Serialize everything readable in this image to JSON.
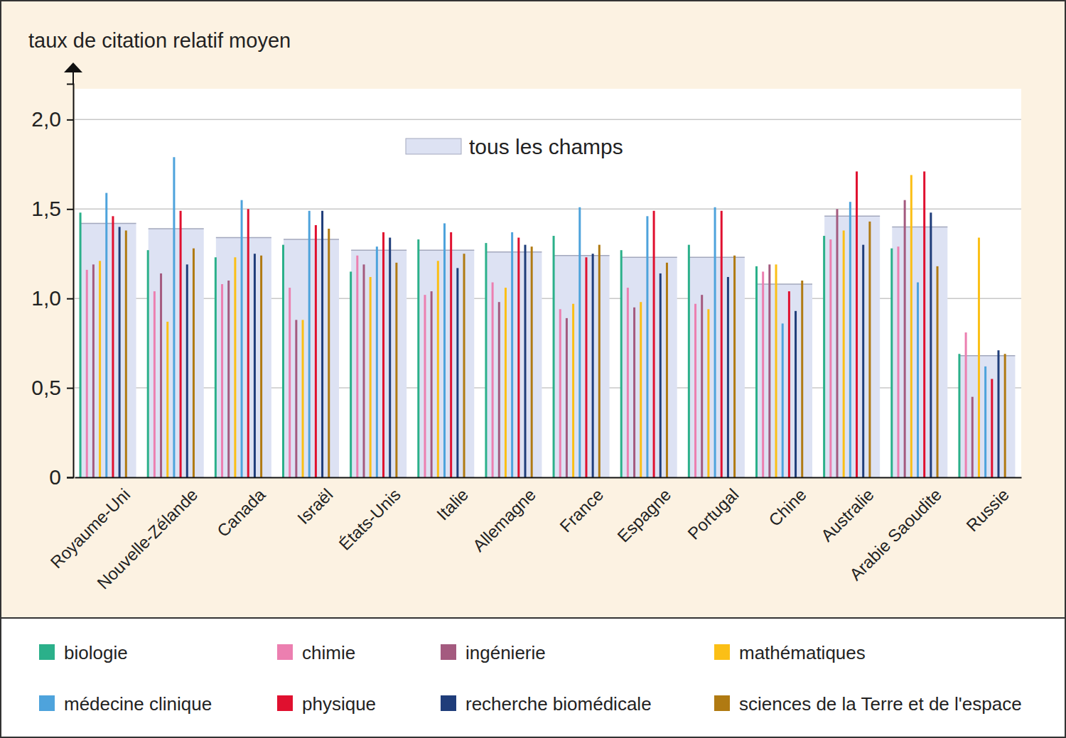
{
  "chart_data": {
    "type": "bar",
    "y_label": "taux de citation relatif moyen",
    "categories": [
      "Royaume-Uni",
      "Nouvelle-Zélande",
      "Canada",
      "Israël",
      "États-Unis",
      "Italie",
      "Allemagne",
      "France",
      "Espagne",
      "Portugal",
      "Chine",
      "Australie",
      "Arabie Saoudite",
      "Russie"
    ],
    "series": [
      {
        "name": "tous les champs",
        "color": "#dde2f3",
        "values": [
          1.42,
          1.39,
          1.34,
          1.33,
          1.27,
          1.27,
          1.26,
          1.24,
          1.23,
          1.23,
          1.08,
          1.46,
          1.4,
          0.68
        ]
      },
      {
        "name": "biologie",
        "color": "#2bb08a",
        "values": [
          1.48,
          1.27,
          1.23,
          1.3,
          1.15,
          1.33,
          1.31,
          1.35,
          1.27,
          1.3,
          1.18,
          1.35,
          1.28,
          0.69
        ]
      },
      {
        "name": "chimie",
        "color": "#ec7fb0",
        "values": [
          1.16,
          1.04,
          1.08,
          1.06,
          1.24,
          1.02,
          1.09,
          0.94,
          1.06,
          0.97,
          1.15,
          1.33,
          1.29,
          0.81
        ]
      },
      {
        "name": "ingénierie",
        "color": "#a45a7f",
        "values": [
          1.19,
          1.14,
          1.1,
          0.88,
          1.19,
          1.04,
          0.98,
          0.89,
          0.95,
          1.02,
          1.19,
          1.5,
          1.55,
          0.45
        ]
      },
      {
        "name": "mathématiques",
        "color": "#fbbf16",
        "values": [
          1.21,
          0.87,
          1.23,
          0.88,
          1.12,
          1.21,
          1.06,
          0.97,
          0.98,
          0.94,
          1.19,
          1.38,
          1.69,
          1.34
        ]
      },
      {
        "name": "médecine clinique",
        "color": "#4ea3dc",
        "values": [
          1.59,
          1.79,
          1.55,
          1.49,
          1.29,
          1.42,
          1.37,
          1.51,
          1.46,
          1.51,
          0.86,
          1.54,
          1.09,
          0.62
        ]
      },
      {
        "name": "physique",
        "color": "#e0102f",
        "values": [
          1.46,
          1.49,
          1.5,
          1.41,
          1.37,
          1.37,
          1.34,
          1.23,
          1.49,
          1.49,
          1.04,
          1.71,
          1.71,
          0.55
        ]
      },
      {
        "name": "recherche biomédicale",
        "color": "#1f3d7a",
        "values": [
          1.4,
          1.19,
          1.25,
          1.49,
          1.34,
          1.17,
          1.3,
          1.25,
          1.14,
          1.12,
          0.93,
          1.3,
          1.48,
          0.71
        ]
      },
      {
        "name": "sciences de la Terre et de l'espace",
        "color": "#b07a12",
        "values": [
          1.38,
          1.28,
          1.24,
          1.39,
          1.2,
          1.25,
          1.29,
          1.3,
          1.2,
          1.24,
          1.1,
          1.43,
          1.18,
          0.69
        ]
      }
    ],
    "ylim": [
      0,
      2.2
    ],
    "yticks": [
      0,
      {
        "value": 0.5,
        "label": "0,5"
      },
      {
        "value": 1,
        "label": "1,0"
      },
      {
        "value": 1.5,
        "label": "1,5"
      },
      {
        "value": 2,
        "label": "2,0"
      }
    ],
    "grid": true,
    "legend": "bottom"
  }
}
